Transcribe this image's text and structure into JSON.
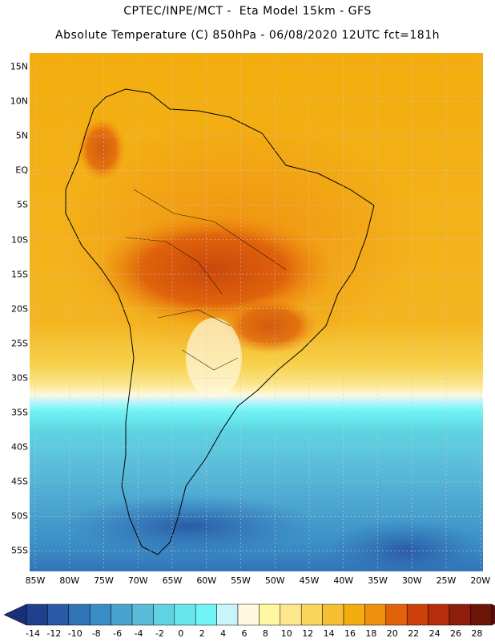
{
  "title_line1": "CPTEC/INPE/MCT -  Eta Model 15km - GFS",
  "title_line2": "Absolute Temperature (C) 850hPa - 06/08/2020 12UTC fct=181h",
  "lat_labels": [
    "15N",
    "10N",
    "5N",
    "EQ",
    "5S",
    "10S",
    "15S",
    "20S",
    "25S",
    "30S",
    "35S",
    "40S",
    "45S",
    "50S",
    "55S"
  ],
  "lon_labels": [
    "85W",
    "80W",
    "75W",
    "70W",
    "65W",
    "60W",
    "55W",
    "50W",
    "45W",
    "40W",
    "35W",
    "30W",
    "25W",
    "20W"
  ],
  "colorbar": {
    "labels": [
      "-14",
      "-12",
      "-10",
      "-8",
      "-6",
      "-4",
      "-2",
      "0",
      "2",
      "4",
      "6",
      "8",
      "10",
      "12",
      "14",
      "16",
      "18",
      "20",
      "22",
      "24",
      "26",
      "28"
    ],
    "colors": [
      "#1f3f8f",
      "#2a5aa6",
      "#3274b8",
      "#3a8ec6",
      "#4aa3cf",
      "#5bbcd9",
      "#5fd3e2",
      "#68e6ec",
      "#6ff5f5",
      "#c9f4fb",
      "#fff8df",
      "#fff7a0",
      "#fde78c",
      "#fbd65d",
      "#f6bf33",
      "#f3ad0e",
      "#ef8f10",
      "#e0620b",
      "#cd3f0b",
      "#b72c0a",
      "#8e1d0b",
      "#6d1409"
    ],
    "low_color": "#1a2f7a",
    "high_color": "#5a0b0b"
  }
}
